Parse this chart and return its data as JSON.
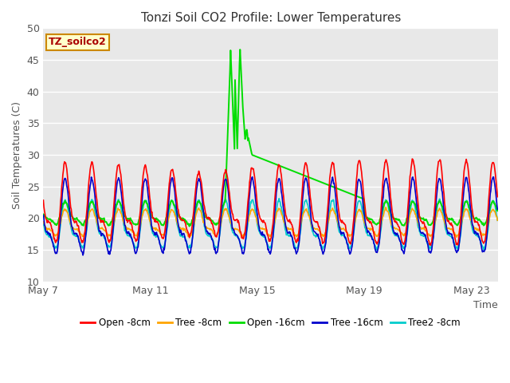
{
  "title": "Tonzi Soil CO2 Profile: Lower Temperatures",
  "xlabel": "Time",
  "ylabel": "Soil Temperatures (C)",
  "ylim": [
    10,
    50
  ],
  "xlim": [
    0,
    17
  ],
  "bg_color": "#e8e8e8",
  "watermark_text": "TZ_soilco2",
  "xtick_labels": [
    "May 7",
    "May 11",
    "May 15",
    "May 19",
    "May 23"
  ],
  "xtick_positions": [
    0,
    4,
    8,
    12,
    16
  ],
  "series": {
    "open_8cm": {
      "color": "#ff0000",
      "label": "Open -8cm",
      "lw": 1.2
    },
    "tree_8cm": {
      "color": "#ffa500",
      "label": "Tree -8cm",
      "lw": 1.2
    },
    "open_16cm": {
      "color": "#00dd00",
      "label": "Open -16cm",
      "lw": 1.4
    },
    "tree_16cm": {
      "color": "#0000cc",
      "label": "Tree -16cm",
      "lw": 1.2
    },
    "tree2_8cm": {
      "color": "#00cccc",
      "label": "Tree2 -8cm",
      "lw": 1.2
    }
  }
}
